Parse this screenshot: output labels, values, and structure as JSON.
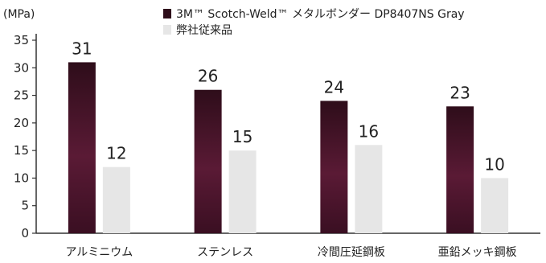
{
  "chart_data": {
    "type": "bar",
    "unit": "(MPa)",
    "categories": [
      "アルミニウム",
      "ステンレス",
      "冷間圧延鋼板",
      "亜鉛メッキ鋼板"
    ],
    "series": [
      {
        "name": "3M™ Scotch-Weld™ メタルボンダー DP8407NS Gray",
        "values": [
          31,
          26,
          24,
          23
        ],
        "color": "#4a1428"
      },
      {
        "name": "弊社従来品",
        "values": [
          12,
          15,
          16,
          10
        ],
        "color": "#e6e6e6"
      }
    ],
    "ylim": [
      0,
      35
    ],
    "yticks": [
      "0",
      "5",
      "10",
      "15",
      "20",
      "25",
      "30",
      "35"
    ],
    "legend_position": "top-right",
    "grid": false
  }
}
